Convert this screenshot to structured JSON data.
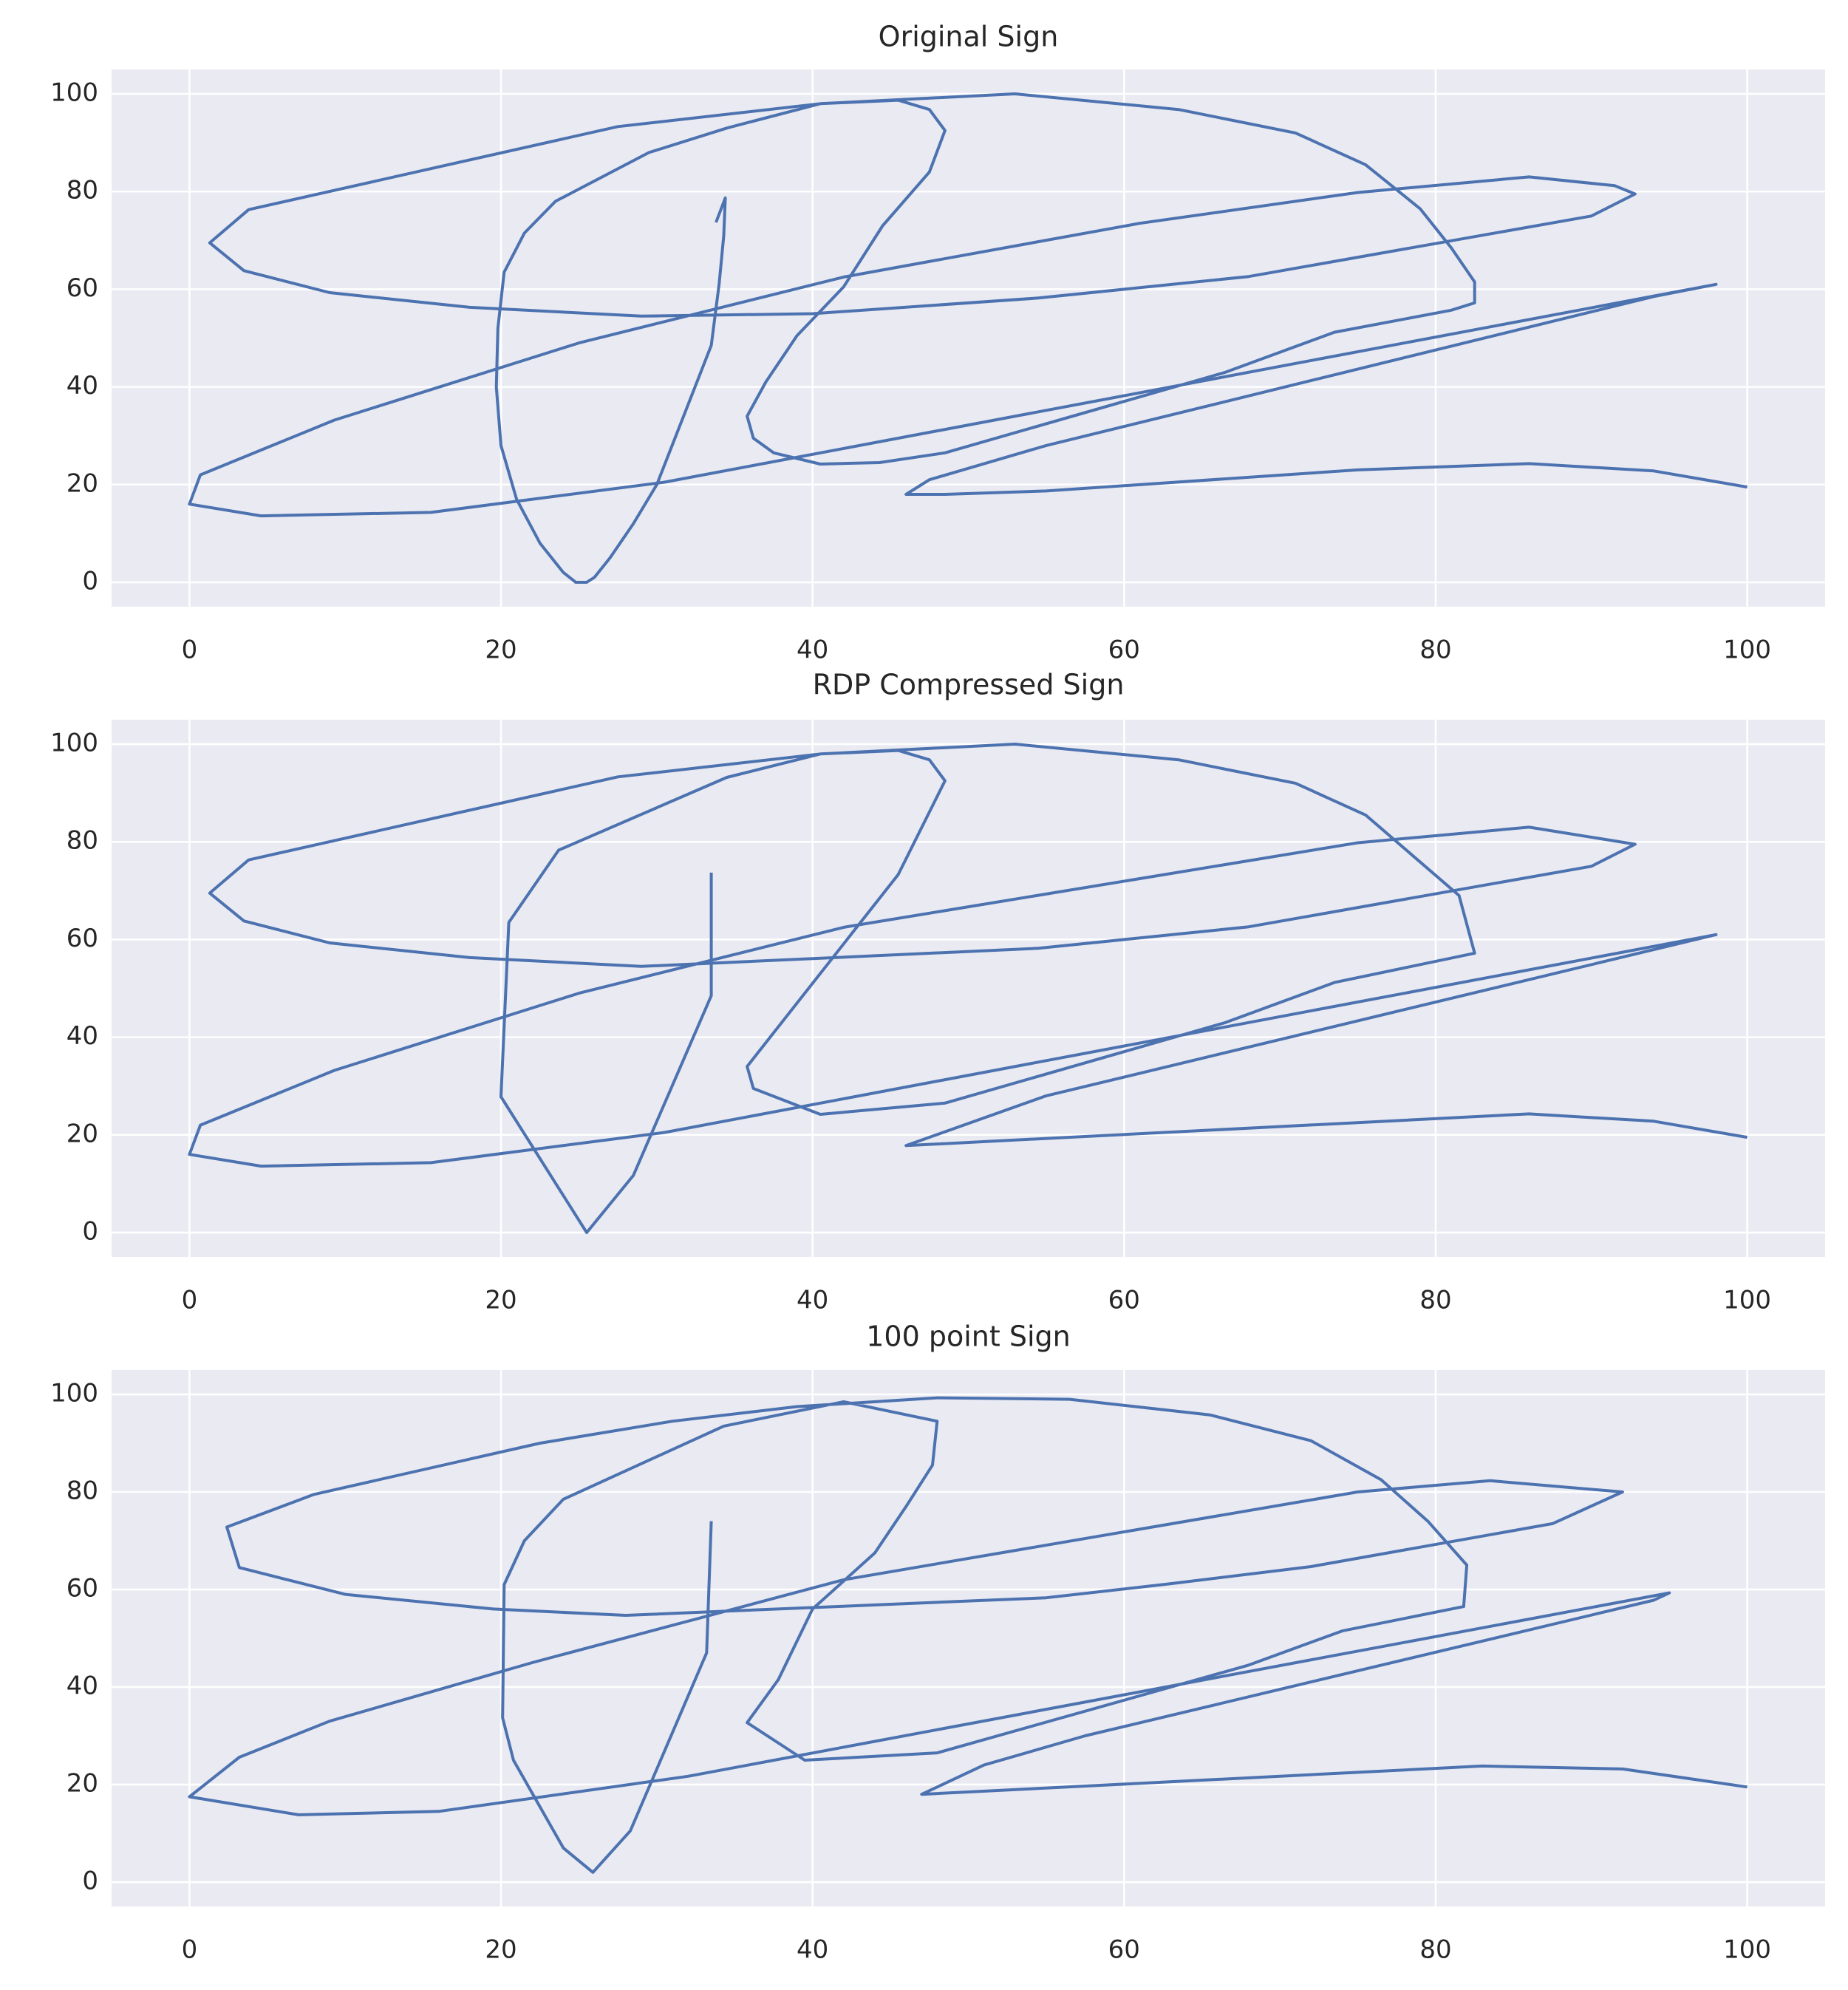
{
  "chart_data": [
    {
      "type": "line",
      "title": "Original Sign",
      "color": "#4c72b0",
      "grid": true,
      "xlim": [
        -5,
        105
      ],
      "ylim": [
        -5,
        105
      ],
      "xticks": [
        0,
        20,
        40,
        60,
        80,
        100
      ],
      "yticks": [
        0,
        20,
        40,
        60,
        80,
        100
      ],
      "x": [
        33.8,
        34.4,
        34.3,
        34,
        33.5,
        30,
        28.5,
        27,
        26,
        25.5,
        24.8,
        24,
        22.5,
        21,
        20,
        19.7,
        19.8,
        20.2,
        21.5,
        23.5,
        29.5,
        34.5,
        40.5,
        45.5,
        47.5,
        48.5,
        47.5,
        44.5,
        42,
        39,
        37,
        35.8,
        36.2,
        37.5,
        40.5,
        44.3,
        48.5,
        66.5,
        73.5,
        81,
        82.5,
        82.5,
        81,
        79,
        75.5,
        71,
        63.5,
        53,
        40.5,
        27.5,
        3.8,
        1.3,
        3.5,
        9,
        18,
        29,
        40,
        54.5,
        68,
        90,
        92.8,
        91.5,
        86,
        75,
        61,
        42,
        25,
        9.3,
        0.7,
        0,
        4.6,
        15.5,
        30.5,
        98,
        94,
        55,
        47.5,
        46,
        48.5,
        55,
        75,
        86,
        94,
        100
      ],
      "values": [
        73.7,
        78.7,
        71,
        61,
        48.5,
        20,
        12,
        5,
        1,
        0,
        0,
        2,
        8,
        17,
        28,
        40,
        52,
        63.5,
        71.5,
        78,
        88,
        93,
        98,
        98.7,
        96.8,
        92.5,
        84,
        73,
        60.5,
        50.5,
        41,
        34,
        29.5,
        26.5,
        24.2,
        24.5,
        26.5,
        43,
        51.2,
        55.7,
        57.2,
        61.5,
        68.5,
        76.5,
        85.5,
        92,
        96.8,
        100,
        98,
        93.3,
        76.3,
        69.5,
        63.8,
        59.3,
        56.3,
        54.5,
        55,
        58.2,
        62.6,
        75,
        79.5,
        81.2,
        83,
        79.8,
        73.5,
        62.5,
        49,
        33.2,
        22,
        16,
        13.6,
        14.3,
        20.5,
        61,
        58.5,
        28,
        21,
        18,
        18,
        18.7,
        23,
        24.3,
        22.8,
        19.5
      ]
    },
    {
      "type": "line",
      "title": "RDP Compressed Sign",
      "color": "#4c72b0",
      "grid": true,
      "xlim": [
        -5,
        105
      ],
      "ylim": [
        -5,
        105
      ],
      "xticks": [
        0,
        20,
        40,
        60,
        80,
        100
      ],
      "yticks": [
        0,
        20,
        40,
        60,
        80,
        100
      ],
      "x": [
        33.5,
        33.5,
        28.5,
        25.5,
        20,
        20.5,
        23.7,
        34.5,
        40.5,
        45.5,
        47.5,
        48.5,
        45.5,
        35.8,
        36.2,
        40.5,
        48.5,
        66.5,
        73.5,
        82.5,
        81.5,
        75.5,
        71,
        63.5,
        53,
        40.5,
        27.5,
        3.8,
        1.3,
        3.5,
        9,
        18,
        29,
        54.5,
        68,
        90,
        92.8,
        86,
        75,
        42,
        25,
        9.3,
        0.7,
        0,
        4.6,
        15.5,
        30.5,
        98,
        55,
        46,
        86,
        94,
        100
      ],
      "values": [
        73.7,
        48.5,
        11.7,
        0,
        27.8,
        63.5,
        78.3,
        93.2,
        98,
        98.7,
        96.8,
        92.5,
        73.3,
        34,
        29.5,
        24.2,
        26.5,
        43,
        51.2,
        57.2,
        69,
        85.5,
        92,
        96.8,
        100,
        98,
        93.3,
        76.3,
        69.5,
        63.8,
        59.3,
        56.3,
        54.5,
        58.2,
        62.6,
        75,
        79.5,
        83,
        79.8,
        62.5,
        49,
        33.2,
        22,
        16,
        13.6,
        14.3,
        20.5,
        61,
        28,
        17.8,
        24.3,
        22.8,
        19.5
      ]
    },
    {
      "type": "line",
      "title": "100 point Sign",
      "color": "#4c72b0",
      "grid": true,
      "xlim": [
        -5,
        105
      ],
      "ylim": [
        -5,
        105
      ],
      "xticks": [
        0,
        20,
        40,
        60,
        80,
        100
      ],
      "yticks": [
        0,
        20,
        40,
        60,
        80,
        100
      ],
      "x": [
        33.5,
        33.2,
        28.3,
        25.9,
        24,
        20.8,
        20.1,
        20.2,
        21.5,
        24,
        34.3,
        42,
        48,
        47.7,
        46,
        44,
        40,
        37.8,
        35.8,
        39.5,
        48,
        68,
        74,
        81.8,
        82,
        79.5,
        76.5,
        72,
        65.5,
        56.5,
        48,
        39,
        31,
        22.5,
        8,
        2.4,
        3.2,
        10,
        19.5,
        28,
        55,
        63,
        72,
        87.5,
        92,
        83.5,
        75,
        42,
        22,
        9,
        3.2,
        0,
        7,
        16,
        32,
        95,
        94,
        57.5,
        51,
        47,
        83,
        92,
        100
      ],
      "values": [
        74,
        47,
        10.5,
        2,
        7,
        25,
        33.7,
        61,
        70,
        78.5,
        93.5,
        98.5,
        94.5,
        85.5,
        77,
        67.5,
        56,
        41.5,
        32.7,
        25,
        26.5,
        44.5,
        51.5,
        56.5,
        65,
        74,
        82.5,
        90.5,
        95.8,
        99,
        99.3,
        97.5,
        94.5,
        90,
        79.5,
        72.8,
        64.5,
        59,
        56,
        54.7,
        58.3,
        61.2,
        64.7,
        73.5,
        80,
        82.3,
        80,
        62,
        45,
        33,
        25.6,
        17.5,
        13.8,
        14.5,
        21.7,
        59.3,
        57.8,
        30,
        24,
        18,
        23.8,
        23.2,
        19.5
      ]
    }
  ]
}
